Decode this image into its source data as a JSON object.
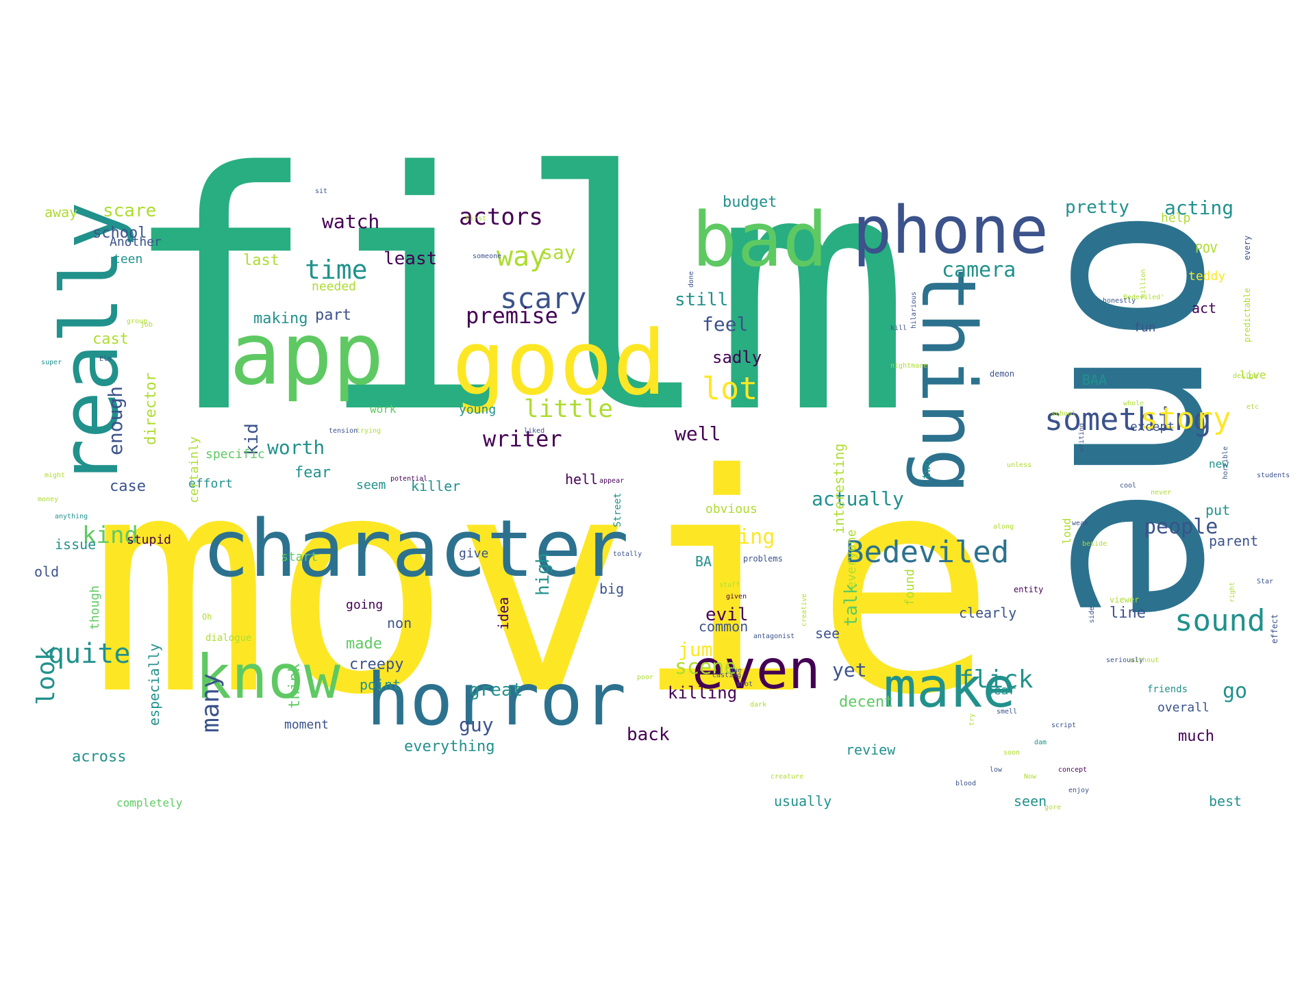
{
  "palette": {
    "c0": "#440154",
    "c1": "#3b528b",
    "c2": "#2c728e",
    "c3": "#21918c",
    "c4": "#28ae80",
    "c5": "#5ec962",
    "c6": "#addc30",
    "c7": "#fde725"
  },
  "words": [
    {
      "text": "film",
      "color": "c4"
    },
    {
      "text": "movie",
      "color": "c7"
    },
    {
      "text": "one",
      "color": "c2"
    },
    {
      "text": "app",
      "color": "c5"
    },
    {
      "text": "good",
      "color": "c7"
    },
    {
      "text": "bad",
      "color": "c5"
    },
    {
      "text": "phone",
      "color": "c1"
    },
    {
      "text": "character",
      "color": "c2"
    },
    {
      "text": "really",
      "color": "c3"
    },
    {
      "text": "thing",
      "color": "c2"
    },
    {
      "text": "horror",
      "color": "c2"
    },
    {
      "text": "know",
      "color": "c5"
    },
    {
      "text": "even",
      "color": "c0"
    },
    {
      "text": "make",
      "color": "c3"
    },
    {
      "text": "something",
      "color": "c1"
    },
    {
      "text": "story",
      "color": "c7"
    },
    {
      "text": "Bedeviled",
      "color": "c2"
    },
    {
      "text": "sound",
      "color": "c3"
    },
    {
      "text": "scary",
      "color": "c1"
    },
    {
      "text": "way",
      "color": "c6"
    },
    {
      "text": "lot",
      "color": "c7"
    },
    {
      "text": "time",
      "color": "c3"
    },
    {
      "text": "little",
      "color": "c6"
    },
    {
      "text": "actors",
      "color": "c0"
    },
    {
      "text": "premise",
      "color": "c0"
    },
    {
      "text": "writer",
      "color": "c0"
    },
    {
      "text": "camera",
      "color": "c3"
    },
    {
      "text": "scene",
      "color": "c6"
    },
    {
      "text": "quite",
      "color": "c3"
    },
    {
      "text": "look",
      "color": "c3"
    },
    {
      "text": "many",
      "color": "c1"
    },
    {
      "text": "people",
      "color": "c1"
    },
    {
      "text": "kind",
      "color": "c5"
    },
    {
      "text": "flick",
      "color": "c3"
    },
    {
      "text": "actually",
      "color": "c3"
    },
    {
      "text": "nothing",
      "color": "c7"
    },
    {
      "text": "pretty",
      "color": "c3"
    },
    {
      "text": "acting",
      "color": "c3"
    },
    {
      "text": "watch",
      "color": "c0"
    },
    {
      "text": "scare",
      "color": "c6"
    },
    {
      "text": "least",
      "color": "c0"
    },
    {
      "text": "say",
      "color": "c6"
    },
    {
      "text": "still",
      "color": "c3"
    },
    {
      "text": "feel",
      "color": "c1"
    },
    {
      "text": "well",
      "color": "c0"
    },
    {
      "text": "worth",
      "color": "c3"
    },
    {
      "text": "enough",
      "color": "c1"
    },
    {
      "text": "kid",
      "color": "c1"
    },
    {
      "text": "high",
      "color": "c3"
    },
    {
      "text": "talk",
      "color": "c5"
    },
    {
      "text": "jump",
      "color": "c7"
    },
    {
      "text": "evil",
      "color": "c0"
    },
    {
      "text": "go",
      "color": "c3"
    },
    {
      "text": "yet",
      "color": "c1"
    },
    {
      "text": "guy",
      "color": "c1"
    },
    {
      "text": "back",
      "color": "c0"
    },
    {
      "text": "killing",
      "color": "c0"
    },
    {
      "text": "great",
      "color": "c3"
    },
    {
      "text": "budget",
      "color": "c3"
    },
    {
      "text": "school",
      "color": "c1"
    },
    {
      "text": "away",
      "color": "c6"
    },
    {
      "text": "last",
      "color": "c6"
    },
    {
      "text": "making",
      "color": "c3"
    },
    {
      "text": "part",
      "color": "c1"
    },
    {
      "text": "cast",
      "color": "c6"
    },
    {
      "text": "director",
      "color": "c6"
    },
    {
      "text": "sadly",
      "color": "c0"
    },
    {
      "text": "interesting",
      "color": "c6"
    },
    {
      "text": "fear",
      "color": "c3"
    },
    {
      "text": "case",
      "color": "c1"
    },
    {
      "text": "effort",
      "color": "c3"
    },
    {
      "text": "seem",
      "color": "c3"
    },
    {
      "text": "killer",
      "color": "c3"
    },
    {
      "text": "issue",
      "color": "c3"
    },
    {
      "text": "stupid",
      "color": "c0"
    },
    {
      "text": "old",
      "color": "c1"
    },
    {
      "text": "especially",
      "color": "c3"
    },
    {
      "text": "think",
      "color": "c5"
    },
    {
      "text": "made",
      "color": "c5"
    },
    {
      "text": "creepy",
      "color": "c1"
    },
    {
      "text": "point",
      "color": "c3"
    },
    {
      "text": "across",
      "color": "c3"
    },
    {
      "text": "everything",
      "color": "c3"
    },
    {
      "text": "usually",
      "color": "c3"
    },
    {
      "text": "review",
      "color": "c3"
    },
    {
      "text": "decent",
      "color": "c5"
    },
    {
      "text": "seen",
      "color": "c3"
    },
    {
      "text": "best",
      "color": "c3"
    },
    {
      "text": "much",
      "color": "c0"
    },
    {
      "text": "overall",
      "color": "c1"
    },
    {
      "text": "line",
      "color": "c1"
    },
    {
      "text": "clearly",
      "color": "c1"
    },
    {
      "text": "BAA",
      "color": "c3"
    },
    {
      "text": "except",
      "color": "c1"
    },
    {
      "text": "act",
      "color": "c0"
    },
    {
      "text": "fun",
      "color": "c1"
    },
    {
      "text": "POV",
      "color": "c6"
    },
    {
      "text": "teddy",
      "color": "c7"
    },
    {
      "text": "help",
      "color": "c6"
    },
    {
      "text": "parent",
      "color": "c1"
    },
    {
      "text": "put",
      "color": "c3"
    },
    {
      "text": "live",
      "color": "c6"
    },
    {
      "text": "new",
      "color": "c3"
    },
    {
      "text": "Another",
      "color": "c1"
    },
    {
      "text": "teen",
      "color": "c3"
    },
    {
      "text": "needed",
      "color": "c6"
    },
    {
      "text": "young",
      "color": "c3"
    },
    {
      "text": "work",
      "color": "c5"
    },
    {
      "text": "give",
      "color": "c1"
    },
    {
      "text": "start",
      "color": "c5"
    },
    {
      "text": "BA",
      "color": "c3"
    },
    {
      "text": "big",
      "color": "c1"
    },
    {
      "text": "common",
      "color": "c1"
    },
    {
      "text": "non",
      "color": "c1"
    },
    {
      "text": "going",
      "color": "c0"
    },
    {
      "text": "see",
      "color": "c1"
    },
    {
      "text": "obvious",
      "color": "c6"
    },
    {
      "text": "hell",
      "color": "c0"
    },
    {
      "text": "everyone",
      "color": "c6"
    },
    {
      "text": "found",
      "color": "c6"
    },
    {
      "text": "idea",
      "color": "c0"
    },
    {
      "text": "though",
      "color": "c5"
    },
    {
      "text": "specific",
      "color": "c5"
    },
    {
      "text": "certainly",
      "color": "c6"
    },
    {
      "text": "loud",
      "color": "c6"
    },
    {
      "text": "two",
      "color": "c3"
    },
    {
      "text": "moment",
      "color": "c1"
    },
    {
      "text": "completely",
      "color": "c5"
    },
    {
      "text": "bear",
      "color": "c3"
    },
    {
      "text": "Street",
      "color": "c3"
    },
    {
      "text": "friends",
      "color": "c3"
    },
    {
      "text": "dialogue",
      "color": "c6"
    },
    {
      "text": "Oh",
      "color": "c6"
    },
    {
      "text": "sit",
      "color": "c1"
    },
    {
      "text": "First",
      "color": "c6"
    },
    {
      "text": "someone",
      "color": "c1"
    },
    {
      "text": "done",
      "color": "c1"
    },
    {
      "text": "million",
      "color": "c6"
    },
    {
      "text": "Bedeviled'",
      "color": "c6"
    },
    {
      "text": "every",
      "color": "c1"
    },
    {
      "text": "predictable",
      "color": "c6"
    },
    {
      "text": "honestly",
      "color": "c1"
    },
    {
      "text": "demon",
      "color": "c1"
    },
    {
      "text": "design",
      "color": "c6"
    },
    {
      "text": "etc",
      "color": "c6"
    },
    {
      "text": "liked",
      "color": "c1"
    },
    {
      "text": "trying",
      "color": "c6"
    },
    {
      "text": "tension",
      "color": "c1"
    },
    {
      "text": "potential",
      "color": "c0"
    },
    {
      "text": "appear",
      "color": "c0"
    },
    {
      "text": "totally",
      "color": "c1"
    },
    {
      "text": "stuff",
      "color": "c6"
    },
    {
      "text": "problems",
      "color": "c1"
    },
    {
      "text": "given",
      "color": "c0"
    },
    {
      "text": "casting",
      "color": "c1"
    },
    {
      "text": "poor",
      "color": "c6"
    },
    {
      "text": "shot",
      "color": "c1"
    },
    {
      "text": "dark",
      "color": "c6"
    },
    {
      "text": "due",
      "color": "c1"
    },
    {
      "text": "creative",
      "color": "c6"
    },
    {
      "text": "effect",
      "color": "c1"
    },
    {
      "text": "entity",
      "color": "c0"
    },
    {
      "text": "viewer",
      "color": "c6"
    },
    {
      "text": "never",
      "color": "c6"
    },
    {
      "text": "along",
      "color": "c6"
    },
    {
      "text": "group",
      "color": "c6"
    },
    {
      "text": "job",
      "color": "c6"
    },
    {
      "text": "Elm",
      "color": "c1"
    },
    {
      "text": "super",
      "color": "c3"
    },
    {
      "text": "anything",
      "color": "c3"
    },
    {
      "text": "money",
      "color": "c6"
    },
    {
      "text": "might",
      "color": "c6"
    },
    {
      "text": "dam",
      "color": "c3"
    },
    {
      "text": "concept",
      "color": "c0"
    },
    {
      "text": "enjoy",
      "color": "c1"
    },
    {
      "text": "without",
      "color": "c6"
    },
    {
      "text": "school",
      "color": "c6"
    },
    {
      "text": "unless",
      "color": "c6"
    },
    {
      "text": "cool",
      "color": "c1"
    },
    {
      "text": "students",
      "color": "c1"
    },
    {
      "text": "Star",
      "color": "c1"
    },
    {
      "text": "right",
      "color": "c6"
    },
    {
      "text": "horrible",
      "color": "c1"
    },
    {
      "text": "nightmare",
      "color": "c6"
    },
    {
      "text": "hilarious",
      "color": "c1"
    },
    {
      "text": "kill",
      "color": "c1"
    },
    {
      "text": "antagonist",
      "color": "c1"
    },
    {
      "text": "writing",
      "color": "c1"
    },
    {
      "text": "whole",
      "color": "c6"
    },
    {
      "text": "side",
      "color": "c1"
    },
    {
      "text": "seriously",
      "color": "c1"
    },
    {
      "text": "beside",
      "color": "c6"
    },
    {
      "text": "weak",
      "color": "c1"
    },
    {
      "text": "smell",
      "color": "c1"
    },
    {
      "text": "try",
      "color": "c6"
    },
    {
      "text": "soon",
      "color": "c6"
    },
    {
      "text": "gore",
      "color": "c6"
    },
    {
      "text": "low",
      "color": "c1"
    },
    {
      "text": "Now",
      "color": "c6"
    },
    {
      "text": "script",
      "color": "c1"
    },
    {
      "text": "blood",
      "color": "c1"
    },
    {
      "text": "creature",
      "color": "c6"
    }
  ]
}
